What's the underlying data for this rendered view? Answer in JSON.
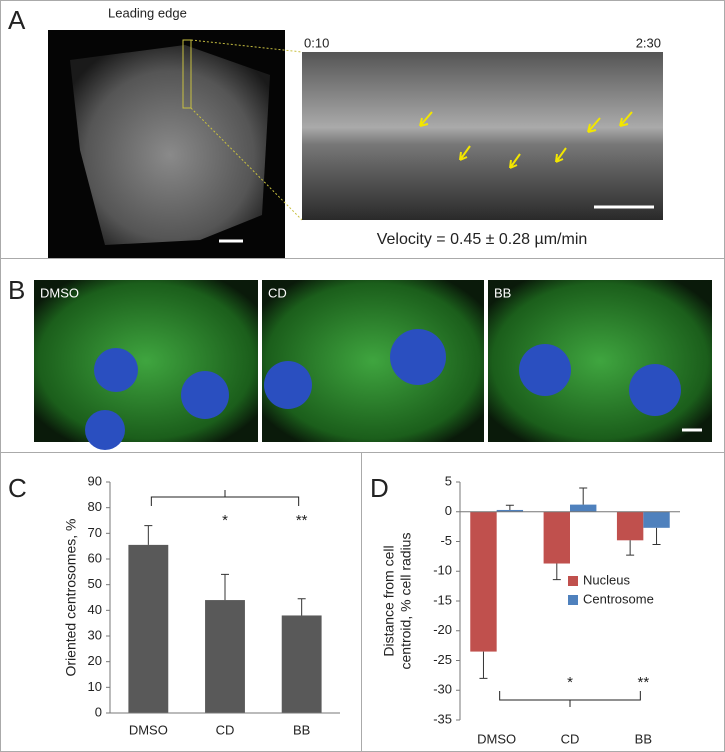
{
  "panels": {
    "A": {
      "label": "A",
      "image_title": "Leading edge",
      "time_start": "0:10",
      "time_end": "2:30",
      "caption": "Velocity = 0.45 ± 0.28 µm/min"
    },
    "B": {
      "label": "B",
      "images": [
        "DMSO",
        "CD",
        "BB"
      ]
    }
  },
  "chart_data": [
    {
      "type": "bar",
      "panel_label": "C",
      "y_label": "Oriented centrosomes, %",
      "categories": [
        "DMSO",
        "CD",
        "BB"
      ],
      "values": [
        65.5,
        44,
        38
      ],
      "errors": [
        7.5,
        10,
        6.5
      ],
      "color": "#595959",
      "ylim": [
        0,
        90
      ],
      "yticks": [
        0,
        10,
        20,
        30,
        40,
        50,
        60,
        70,
        80,
        90
      ],
      "annotations": [
        "*",
        "**"
      ]
    },
    {
      "type": "bar",
      "panel_label": "D",
      "y_label": [
        "Distance from cell",
        "centroid, % cell radius"
      ],
      "categories": [
        "DMSO",
        "CD",
        "BB"
      ],
      "series": [
        {
          "name": "Nucleus",
          "color": "#c0504d",
          "values": [
            -23.5,
            -8.7,
            -4.8
          ],
          "errors": [
            4.5,
            2.7,
            2.5
          ]
        },
        {
          "name": "Centrosome",
          "color": "#4f81bd",
          "values": [
            0.3,
            1.2,
            -2.7
          ],
          "errors": [
            0.8,
            2.8,
            2.8
          ]
        }
      ],
      "ylim": [
        -35,
        5
      ],
      "yticks": [
        -35,
        -30,
        -25,
        -20,
        -15,
        -10,
        -5,
        0,
        5
      ],
      "annotations": [
        "*",
        "**"
      ]
    }
  ]
}
